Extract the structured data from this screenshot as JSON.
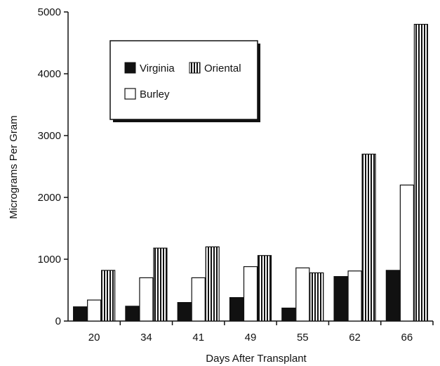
{
  "chart_data": {
    "type": "bar",
    "title": "",
    "xlabel": "Days After Transplant",
    "ylabel": "Micrograms Per Gram",
    "categories": [
      "20",
      "34",
      "41",
      "49",
      "55",
      "62",
      "66"
    ],
    "ylim": [
      0,
      5000
    ],
    "yticks": [
      0,
      1000,
      2000,
      3000,
      4000,
      5000
    ],
    "grid": false,
    "legend_position": "top-left",
    "series": [
      {
        "name": "Virginia",
        "values": [
          230,
          240,
          300,
          380,
          210,
          720,
          820
        ],
        "fill": "solid-black"
      },
      {
        "name": "Burley",
        "values": [
          340,
          700,
          700,
          880,
          860,
          810,
          2200
        ],
        "fill": "white"
      },
      {
        "name": "Oriental",
        "values": [
          820,
          1180,
          1200,
          1060,
          780,
          2700,
          4800
        ],
        "fill": "vertical-stripes"
      }
    ]
  }
}
